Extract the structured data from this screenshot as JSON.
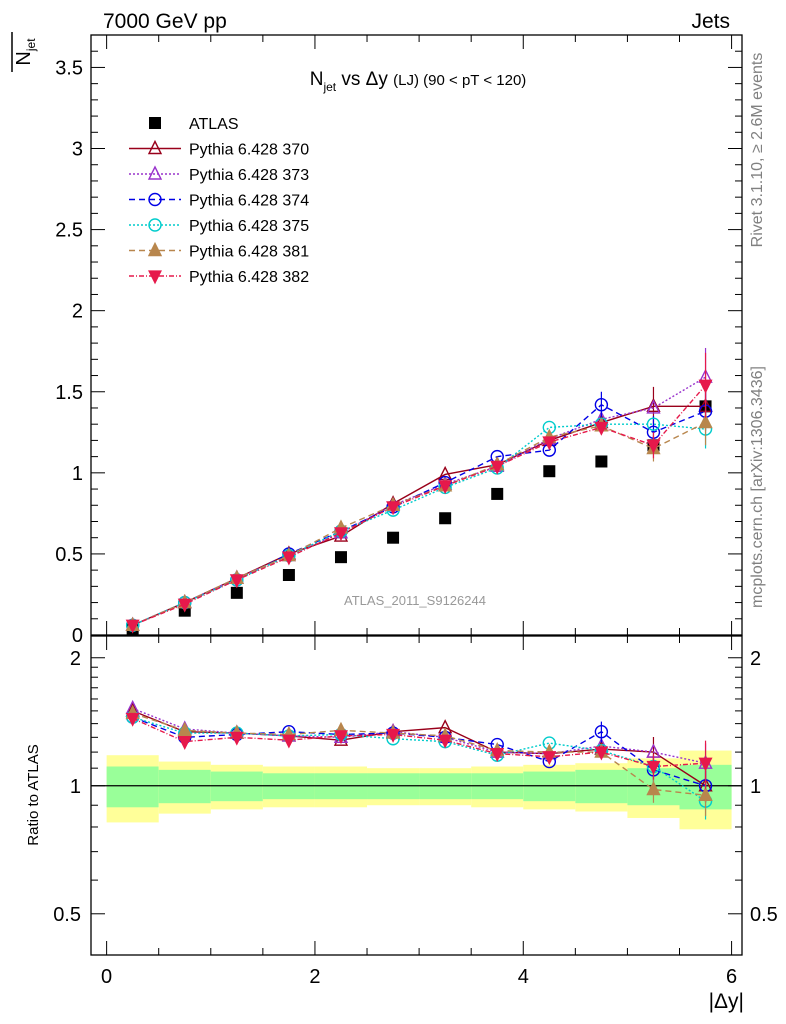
{
  "header": {
    "left": "7000 GeV pp",
    "right": "Jets"
  },
  "side_labels": {
    "rivet": "Rivet 3.1.10, ≥ 2.6M events",
    "mcplots": "mcplots.cern.ch [arXiv:1306.3436]"
  },
  "chart_data": {
    "type": "scatter",
    "title_parts": {
      "n": "N",
      "sub": "jet",
      "mid": " vs Δy ",
      "small": "(LJ)",
      "cut": " (90 < pT < 120)"
    },
    "ylabel_parts": {
      "n": "N",
      "sub": "jet"
    },
    "watermark": "ATLAS_2011_S9126244",
    "xlabel": "|Δy|",
    "ratio_ylabel": "Ratio to ATLAS",
    "xlim": [
      -0.15,
      6.1
    ],
    "ylim": [
      0,
      3.7
    ],
    "ratio_ylim": [
      0.4,
      2.25
    ],
    "ratio_log": true,
    "x_ticks": [
      0,
      2,
      4,
      6
    ],
    "y_ticks": [
      0,
      0.5,
      1,
      1.5,
      2,
      2.5,
      3,
      3.5
    ],
    "y_tick_labels": [
      "0",
      "0.5",
      "1",
      "1.5",
      "2",
      "2.5",
      "3",
      "3.5"
    ],
    "ratio_ticks": [
      0.5,
      1,
      2
    ],
    "ratio_tick_labels": [
      "0.5",
      "1",
      "2"
    ],
    "x": [
      0.25,
      0.75,
      1.25,
      1.75,
      2.25,
      2.75,
      3.25,
      3.75,
      4.25,
      4.75,
      5.25,
      5.75
    ],
    "bin_edges": [
      0,
      0.5,
      1,
      1.5,
      2,
      2.5,
      3,
      3.5,
      4,
      4.5,
      5,
      5.5,
      6
    ],
    "band_inner": [
      0.11,
      0.09,
      0.08,
      0.07,
      0.07,
      0.07,
      0.07,
      0.07,
      0.08,
      0.09,
      0.1,
      0.12
    ],
    "band_outer": [
      0.18,
      0.14,
      0.12,
      0.11,
      0.11,
      0.1,
      0.1,
      0.11,
      0.12,
      0.13,
      0.16,
      0.21
    ],
    "legend_position": "top-left",
    "series": [
      {
        "name": "ATLAS",
        "marker": "square",
        "color": "#000000",
        "dash": "",
        "line": false,
        "values": [
          0.04,
          0.15,
          0.26,
          0.37,
          0.48,
          0.6,
          0.72,
          0.87,
          1.01,
          1.07,
          1.17,
          1.41
        ]
      },
      {
        "name": "Pythia 6.428 370",
        "marker": "triangle-open",
        "color": "#99001a",
        "dash": "",
        "line": true,
        "values": [
          0.06,
          0.2,
          0.35,
          0.5,
          0.61,
          0.81,
          0.99,
          1.05,
          1.2,
          1.31,
          1.41,
          1.41
        ],
        "errors": [
          0,
          0,
          0,
          0,
          0,
          0,
          0,
          0,
          0,
          0,
          0.12,
          0.12
        ],
        "ratio": [
          1.5,
          1.34,
          1.33,
          1.31,
          1.28,
          1.34,
          1.37,
          1.2,
          1.19,
          1.22,
          1.2,
          1.0
        ]
      },
      {
        "name": "Pythia 6.428 373",
        "marker": "triangle-open",
        "color": "#9933cc",
        "dash": "2,2",
        "line": true,
        "values": [
          0.06,
          0.2,
          0.35,
          0.49,
          0.63,
          0.8,
          0.93,
          1.04,
          1.21,
          1.33,
          1.4,
          1.59
        ],
        "errors": [
          0,
          0,
          0,
          0,
          0,
          0,
          0,
          0,
          0,
          0,
          0,
          0.18
        ],
        "ratio": [
          1.52,
          1.36,
          1.33,
          1.31,
          1.3,
          1.34,
          1.3,
          1.2,
          1.19,
          1.24,
          1.2,
          1.13
        ]
      },
      {
        "name": "Pythia 6.428 374",
        "marker": "circle-open",
        "color": "#0000e6",
        "dash": "6,4",
        "line": true,
        "values": [
          0.06,
          0.2,
          0.34,
          0.5,
          0.64,
          0.79,
          0.94,
          1.1,
          1.14,
          1.42,
          1.25,
          1.38
        ],
        "errors": [
          0,
          0,
          0,
          0,
          0,
          0,
          0,
          0,
          0,
          0.08,
          0.1,
          0.12
        ],
        "ratio": [
          1.45,
          1.3,
          1.32,
          1.34,
          1.32,
          1.33,
          1.3,
          1.25,
          1.14,
          1.34,
          1.09,
          1.0
        ]
      },
      {
        "name": "Pythia 6.428 375",
        "marker": "circle-open",
        "color": "#00cccc",
        "dash": "2,2",
        "line": true,
        "values": [
          0.06,
          0.2,
          0.34,
          0.49,
          0.64,
          0.77,
          0.91,
          1.03,
          1.28,
          1.3,
          1.3,
          1.27
        ],
        "errors": [
          0,
          0,
          0,
          0,
          0,
          0,
          0,
          0,
          0,
          0,
          0,
          0.12
        ],
        "ratio": [
          1.45,
          1.33,
          1.33,
          1.31,
          1.32,
          1.29,
          1.27,
          1.18,
          1.26,
          1.21,
          1.11,
          0.92
        ]
      },
      {
        "name": "Pythia 6.428 381",
        "marker": "triangle-filled",
        "color": "#b8864d",
        "dash": "6,4",
        "line": true,
        "values": [
          0.06,
          0.2,
          0.35,
          0.49,
          0.66,
          0.8,
          0.92,
          1.05,
          1.22,
          1.29,
          1.15,
          1.31
        ],
        "errors": [
          0,
          0,
          0,
          0,
          0,
          0,
          0,
          0,
          0,
          0,
          0.08,
          0.14
        ],
        "ratio": [
          1.48,
          1.35,
          1.33,
          1.32,
          1.35,
          1.33,
          1.31,
          1.21,
          1.2,
          1.2,
          0.98,
          0.95
        ]
      },
      {
        "name": "Pythia 6.428 382",
        "marker": "triangle-down-filled",
        "color": "#e6194b",
        "dash": "5,2,1,2",
        "line": true,
        "values": [
          0.06,
          0.19,
          0.34,
          0.48,
          0.63,
          0.79,
          0.92,
          1.04,
          1.19,
          1.28,
          1.17,
          1.54
        ],
        "errors": [
          0,
          0,
          0,
          0,
          0,
          0,
          0,
          0,
          0,
          0,
          0.08,
          0.2
        ],
        "ratio": [
          1.44,
          1.27,
          1.3,
          1.28,
          1.31,
          1.32,
          1.28,
          1.19,
          1.17,
          1.2,
          1.11,
          1.13
        ]
      }
    ]
  }
}
